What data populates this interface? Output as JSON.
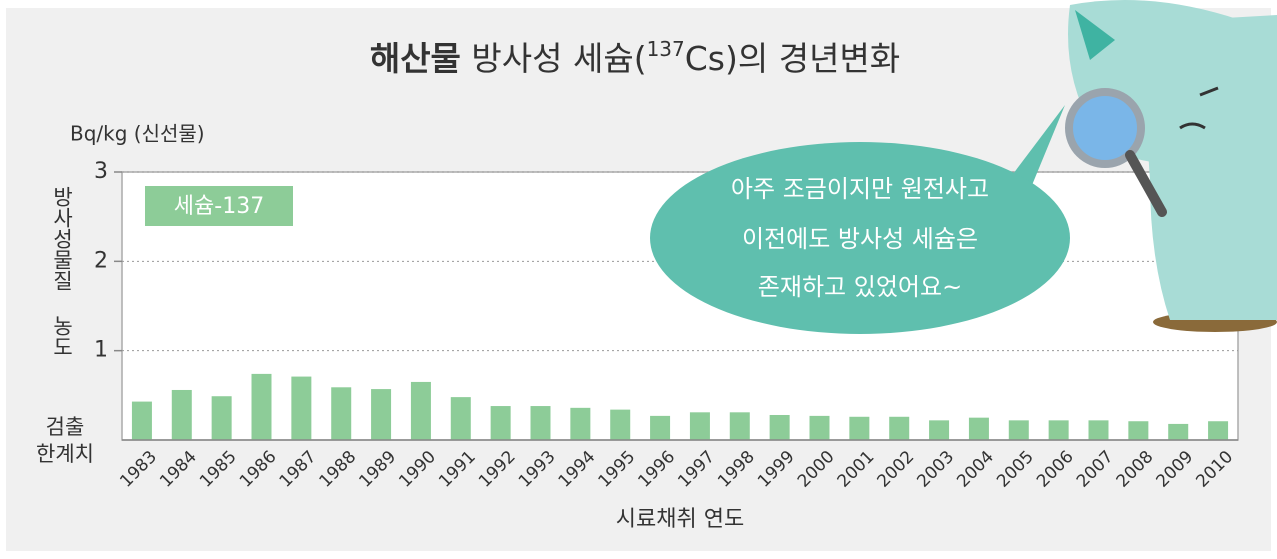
{
  "chart_data": {
    "type": "bar",
    "title_parts": [
      "해산물",
      " 방사성 세슘(",
      "137",
      "Cs)의 경년변화"
    ],
    "unit_label": "Bq/kg (신선물)",
    "y_label": "방사성물질 농도",
    "detection_limit_label": [
      "검출",
      "한계치"
    ],
    "x_label": "시료채취 연도",
    "speech_bubble": [
      "아주 조금이지만 원전사고",
      "이전에도 방사성 세슘은",
      "존재하고 있었어요~"
    ],
    "categories": [
      "1983",
      "1984",
      "1985",
      "1986",
      "1987",
      "1988",
      "1989",
      "1990",
      "1991",
      "1992",
      "1993",
      "1994",
      "1995",
      "1996",
      "1997",
      "1998",
      "1999",
      "2000",
      "2001",
      "2002",
      "2003",
      "2004",
      "2005",
      "2006",
      "2007",
      "2008",
      "2009",
      "2010"
    ],
    "series": [
      {
        "name": "세슘-137",
        "color": "#8dcc98",
        "values": [
          0.43,
          0.56,
          0.49,
          0.74,
          0.71,
          0.59,
          0.57,
          0.65,
          0.48,
          0.38,
          0.38,
          0.36,
          0.34,
          0.27,
          0.31,
          0.31,
          0.28,
          0.27,
          0.26,
          0.26,
          0.22,
          0.25,
          0.22,
          0.22,
          0.22,
          0.21,
          0.18,
          0.21
        ]
      }
    ],
    "ylim": [
      0,
      3
    ],
    "yticks": [
      1,
      2,
      3
    ],
    "grid": true
  }
}
